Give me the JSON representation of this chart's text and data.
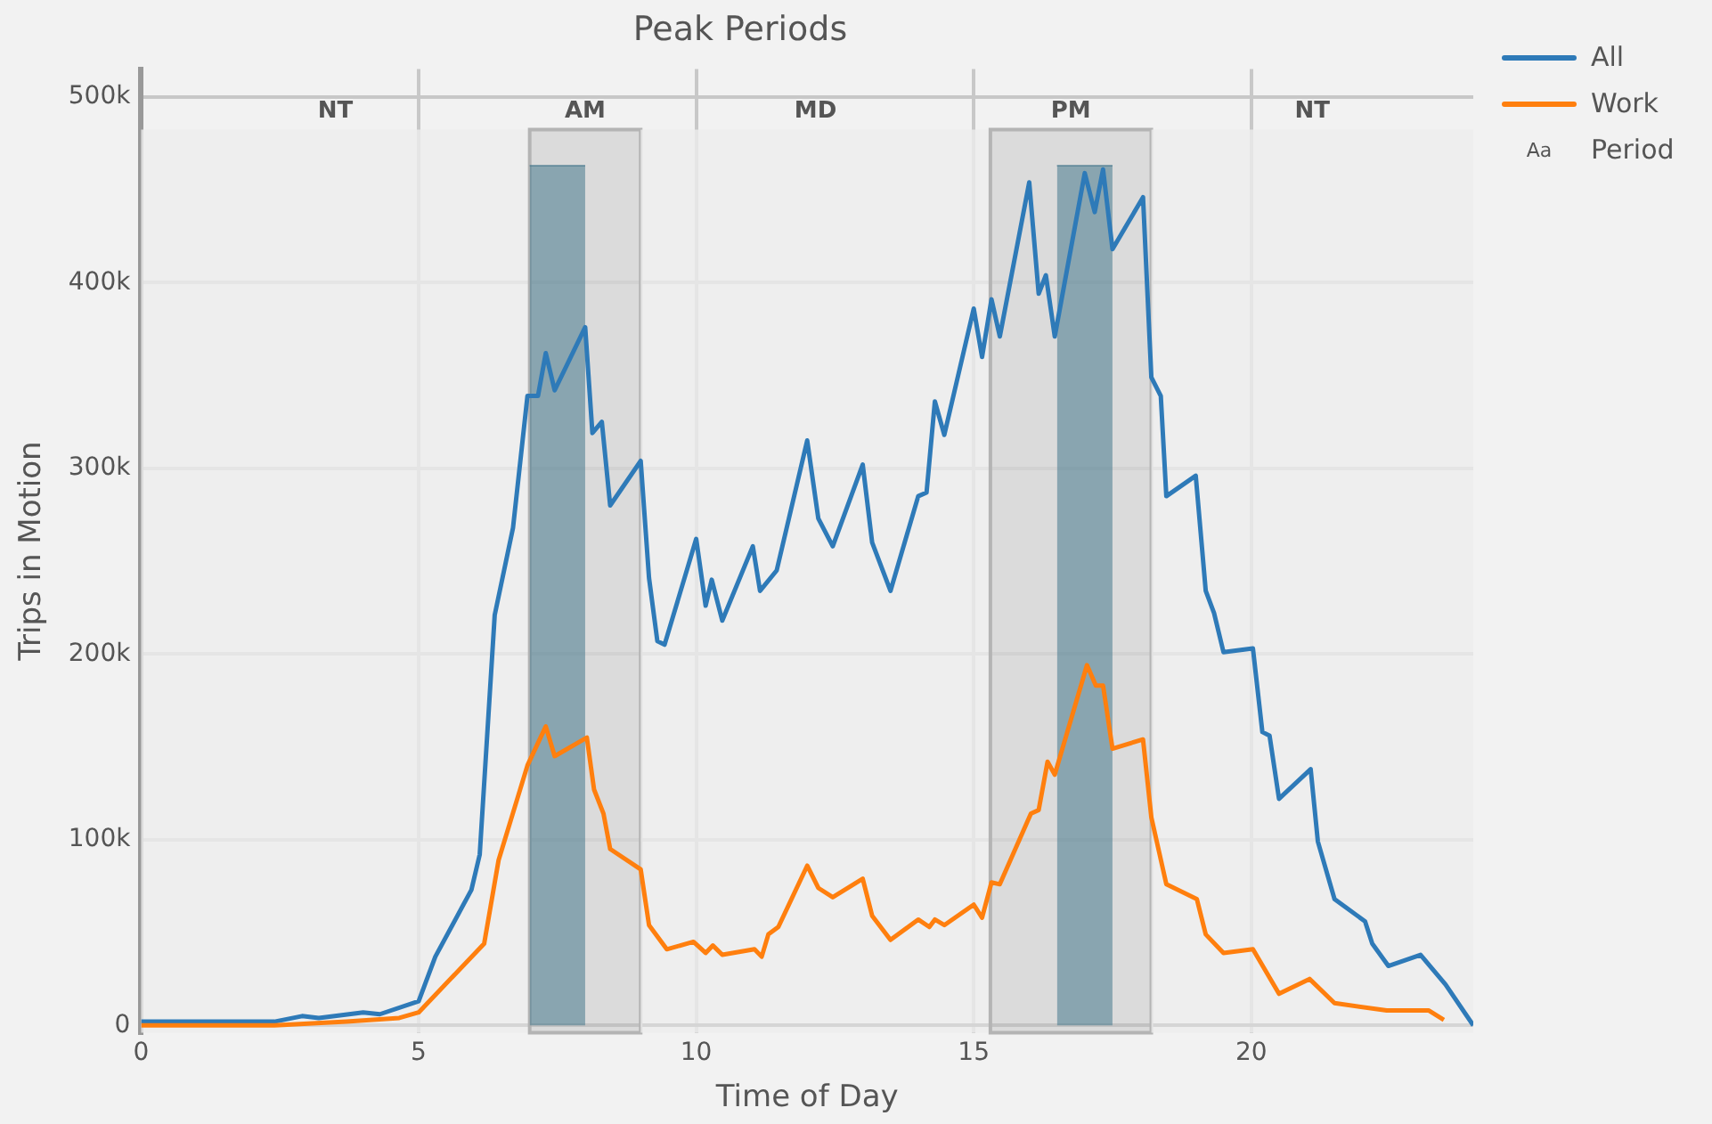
{
  "chart_data": {
    "type": "line",
    "title": "Peak Periods",
    "xlabel": "Time of Day",
    "ylabel": "Trips in Motion",
    "xlim": [
      0,
      24
    ],
    "xticks": [
      0,
      5,
      10,
      15,
      20
    ],
    "ylim": [
      -4000,
      515000
    ],
    "yticks": [
      0,
      {
        "value": 100000,
        "label": "100k"
      },
      {
        "value": 200000,
        "label": "200k"
      },
      {
        "value": 300000,
        "label": "300k"
      },
      {
        "value": 400000,
        "label": "400k"
      },
      {
        "value": 500000,
        "label": "500k"
      }
    ],
    "grid": true,
    "legend": "top right",
    "marker": "none",
    "bands": [
      {
        "axis": "x",
        "from": 0,
        "to": 7,
        "label": "NT",
        "color": "#ececec"
      },
      {
        "axis": "x",
        "from": 7,
        "to": 9,
        "label": "AM",
        "color": "#d4d4d4"
      },
      {
        "axis": "x",
        "from": 9,
        "to": 15.3,
        "label": "MD",
        "color": "#ececec"
      },
      {
        "axis": "x",
        "from": 15.3,
        "to": 18.2,
        "label": "PM",
        "color": "#d4d4d4"
      },
      {
        "axis": "x",
        "from": 18.2,
        "to": 24,
        "label": "NT",
        "color": "#ececec"
      }
    ],
    "series": [
      {
        "type": "area",
        "color": "#46788c",
        "x": [
          7,
          8
        ],
        "values": [
          463000,
          463000
        ]
      },
      {
        "type": "area",
        "color": "#46788c",
        "x": [
          16.5,
          17.5
        ],
        "values": [
          463000,
          463000
        ]
      },
      {
        "name": "All",
        "color": "#2e7ab8",
        "x": [
          0,
          2.4,
          2.9,
          3.2,
          4.0,
          4.3,
          5.0,
          5.3,
          5.95,
          6.1,
          6.37,
          6.7,
          6.96,
          7.15,
          7.29,
          7.45,
          8.0,
          8.13,
          8.3,
          8.45,
          9.0,
          9.15,
          9.3,
          9.43,
          10.0,
          10.17,
          10.28,
          10.47,
          11.02,
          11.15,
          11.45,
          12.0,
          12.2,
          12.46,
          13.0,
          13.17,
          13.5,
          14.0,
          14.15,
          14.3,
          14.47,
          15.0,
          15.15,
          15.32,
          15.47,
          16.0,
          16.17,
          16.3,
          16.46,
          17.0,
          17.18,
          17.33,
          17.5,
          18.05,
          18.2,
          18.37,
          18.47,
          19.0,
          19.18,
          19.33,
          19.5,
          20.03,
          20.2,
          20.33,
          20.5,
          21.07,
          21.2,
          21.5,
          22.05,
          22.18,
          22.47,
          23.05,
          23.5,
          24
        ],
        "values": [
          2000,
          2000,
          5000,
          4000,
          7000,
          6000,
          13000,
          37000,
          73000,
          92000,
          221000,
          268000,
          339000,
          339000,
          362000,
          342000,
          376000,
          319000,
          325000,
          280000,
          304000,
          241000,
          207000,
          205000,
          262000,
          226000,
          240000,
          218000,
          258000,
          234000,
          245000,
          315000,
          273000,
          258000,
          302000,
          260000,
          234000,
          285000,
          287000,
          336000,
          318000,
          386000,
          360000,
          391000,
          371000,
          454000,
          394000,
          404000,
          371000,
          459000,
          438000,
          461000,
          418000,
          446000,
          349000,
          339000,
          285000,
          296000,
          234000,
          222000,
          201000,
          203000,
          158000,
          156000,
          122000,
          138000,
          99000,
          68000,
          56000,
          44000,
          32000,
          38000,
          22000,
          0
        ]
      },
      {
        "name": "Work",
        "color": "#ff7f0e",
        "x": [
          0,
          2.4,
          3.7,
          4.65,
          5.0,
          6.18,
          6.44,
          6.96,
          7.29,
          7.45,
          8.03,
          8.16,
          8.33,
          8.45,
          9.0,
          9.15,
          9.47,
          9.95,
          10.17,
          10.3,
          10.47,
          11.05,
          11.18,
          11.3,
          11.48,
          12.0,
          12.2,
          12.46,
          13.0,
          13.17,
          13.5,
          14.0,
          14.2,
          14.3,
          14.47,
          15.0,
          15.15,
          15.32,
          15.47,
          16.03,
          16.17,
          16.33,
          16.46,
          17.04,
          17.2,
          17.33,
          17.5,
          18.05,
          18.2,
          18.47,
          19.02,
          19.18,
          19.5,
          20.03,
          20.5,
          21.05,
          21.5,
          22.44,
          23.2,
          23.47
        ],
        "values": [
          0,
          0,
          2000,
          4000,
          7000,
          44000,
          89000,
          140000,
          161000,
          145000,
          155000,
          127000,
          114000,
          95000,
          84000,
          54000,
          41000,
          45000,
          39000,
          43000,
          38000,
          41000,
          37000,
          49000,
          53000,
          86000,
          74000,
          69000,
          79000,
          59000,
          46000,
          57000,
          53000,
          57000,
          54000,
          65000,
          58000,
          77000,
          76000,
          114000,
          116000,
          142000,
          135000,
          194000,
          183000,
          183000,
          149000,
          154000,
          112000,
          76000,
          68000,
          49000,
          39000,
          41000,
          17000,
          25000,
          12000,
          8000,
          8000,
          3000
        ]
      }
    ],
    "annotations": [
      "Aa",
      "Period"
    ]
  }
}
